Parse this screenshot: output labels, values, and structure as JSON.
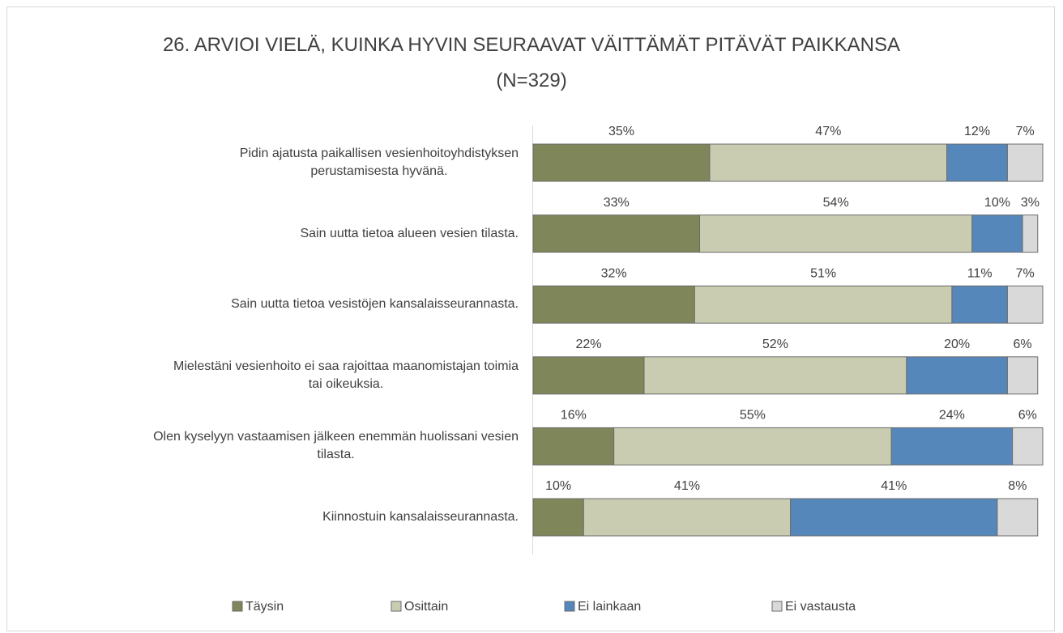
{
  "chart_data": {
    "type": "stacked-bar-horizontal",
    "title": "26. ARVIOI VIELÄ, KUINKA HYVIN SEURAAVAT VÄITTÄMÄT PITÄVÄT PAIKKANSA\n(N=329)",
    "categories": [
      "Pidin ajatusta paikallisen vesienhoitoyhdistyksen\nperustamisesta hyvänä.",
      "Sain uutta tietoa alueen vesien tilasta.",
      "Sain uutta tietoa vesistöjen kansalaisseurannasta.",
      "Mielestäni vesienhoito ei saa rajoittaa maanomistajan toimia\ntai oikeuksia.",
      "Olen kyselyyn vastaamisen jälkeen enemmän huolissani vesien\ntilasta.",
      "Kiinnostuin kansalaisseurannasta."
    ],
    "series": [
      {
        "name": "Täysin",
        "color": "#7f8659",
        "values": [
          35,
          33,
          32,
          22,
          16,
          10
        ],
        "value_labels": [
          "35%",
          "33%",
          "32%",
          "22%",
          "16%",
          "10%"
        ]
      },
      {
        "name": "Osittain",
        "color": "#c9ccb0",
        "values": [
          47,
          54,
          51,
          52,
          55,
          41
        ],
        "value_labels": [
          "47%",
          "54%",
          "51%",
          "52%",
          "55%",
          "41%"
        ]
      },
      {
        "name": "Ei lainkaan",
        "color": "#5587bb",
        "values": [
          12,
          10,
          11,
          20,
          24,
          41
        ],
        "value_labels": [
          "12%",
          "10%",
          "11%",
          "20%",
          "24%",
          "41%"
        ]
      },
      {
        "name": "Ei vastausta",
        "color": "#d9d9d9",
        "values": [
          7,
          3,
          7,
          6,
          6,
          8
        ],
        "value_labels": [
          "7%",
          "3%",
          "7%",
          "6%",
          "6%",
          "8%"
        ]
      }
    ],
    "legend": "bottom"
  }
}
